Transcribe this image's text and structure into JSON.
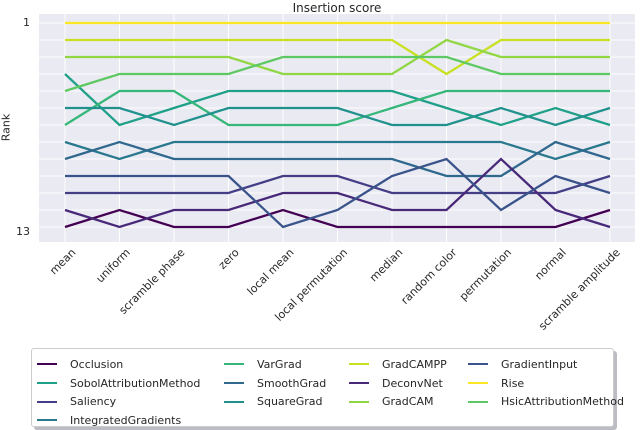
{
  "title": "Insertion score",
  "ylabel": "Rank",
  "yticks": [
    "1",
    "13"
  ],
  "chart_data": {
    "type": "line",
    "subtype": "bump-rank-chart",
    "title": "Insertion score",
    "xlabel": "",
    "ylabel": "Rank",
    "y_axis": {
      "ticks": [
        1,
        13
      ],
      "range": [
        1,
        13
      ],
      "inverted": true
    },
    "grid": true,
    "plot_bg": "#eaeaf2",
    "grid_color": "#ffffff",
    "legend_position": "bottom",
    "x_categories": [
      "mean",
      "uniform",
      "scramble phase",
      "zero",
      "local mean",
      "local permutation",
      "median",
      "random color",
      "permutation",
      "normal",
      "scramble amplitude"
    ],
    "series": [
      {
        "name": "Occlusion",
        "color": "#440154",
        "ranks": [
          13,
          12,
          13,
          13,
          12,
          13,
          13,
          13,
          13,
          13,
          12
        ]
      },
      {
        "name": "SobolAttributionMethod",
        "color": "#1fa088",
        "ranks": [
          4,
          7,
          6,
          5,
          5,
          5,
          5,
          6,
          7,
          6,
          7
        ]
      },
      {
        "name": "Saliency",
        "color": "#433e85",
        "ranks": [
          11,
          11,
          11,
          11,
          10,
          10,
          11,
          11,
          11,
          11,
          10
        ]
      },
      {
        "name": "IntegratedGradients",
        "color": "#29788e",
        "ranks": [
          8,
          9,
          8,
          8,
          8,
          8,
          8,
          8,
          8,
          9,
          8
        ]
      },
      {
        "name": "VarGrad",
        "color": "#35b779",
        "ranks": [
          7,
          5,
          5,
          7,
          7,
          7,
          6,
          5,
          5,
          5,
          5
        ]
      },
      {
        "name": "SmoothGrad",
        "color": "#30688e",
        "ranks": [
          9,
          8,
          9,
          9,
          9,
          9,
          9,
          10,
          10,
          8,
          9
        ]
      },
      {
        "name": "SquareGrad",
        "color": "#20918c",
        "ranks": [
          6,
          6,
          7,
          6,
          6,
          6,
          7,
          7,
          6,
          7,
          6
        ]
      },
      {
        "name": "GradCAMPP",
        "color": "#c8e021",
        "ranks": [
          2,
          2,
          2,
          2,
          2,
          2,
          2,
          4,
          2,
          2,
          2
        ]
      },
      {
        "name": "DeconvNet",
        "color": "#482878",
        "ranks": [
          12,
          13,
          12,
          12,
          11,
          11,
          12,
          12,
          9,
          12,
          13
        ]
      },
      {
        "name": "GradCAM",
        "color": "#90d743",
        "ranks": [
          3,
          3,
          3,
          3,
          4,
          4,
          4,
          2,
          3,
          3,
          3
        ]
      },
      {
        "name": "GradientInput",
        "color": "#3a538b",
        "ranks": [
          10,
          10,
          10,
          10,
          13,
          12,
          10,
          9,
          12,
          10,
          11
        ]
      },
      {
        "name": "Rise",
        "color": "#fde725",
        "ranks": [
          1,
          1,
          1,
          1,
          1,
          1,
          1,
          1,
          1,
          1,
          1
        ]
      },
      {
        "name": "HsicAttributionMethod",
        "color": "#5ec962",
        "ranks": [
          5,
          4,
          4,
          4,
          3,
          3,
          3,
          3,
          4,
          4,
          4
        ]
      }
    ]
  },
  "legend": {
    "columns": [
      [
        "Occlusion",
        "SobolAttributionMethod",
        "Saliency",
        "IntegratedGradients"
      ],
      [
        "VarGrad",
        "SmoothGrad",
        "SquareGrad"
      ],
      [
        "GradCAMPP",
        "DeconvNet",
        "GradCAM"
      ],
      [
        "GradientInput",
        "Rise",
        "HsicAttributionMethod"
      ]
    ]
  }
}
